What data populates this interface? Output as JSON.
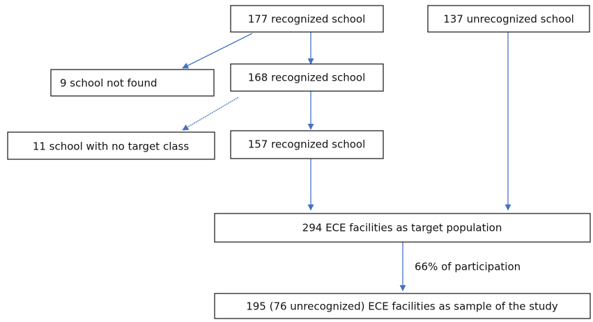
{
  "nodes": [
    {
      "label": "177 recognized school"
    },
    {
      "label": "137 unrecognized school"
    },
    {
      "label": "9 school not found"
    },
    {
      "label": "168 recognized school"
    },
    {
      "label": "11 school with no target class"
    },
    {
      "label": "157 recognized school"
    },
    {
      "label": "294 ECE facilities as target population"
    },
    {
      "label": "195 (76 unrecognized) ECE facilities as sample of the study"
    }
  ],
  "edges": [
    {
      "label": "66% of participation"
    }
  ]
}
